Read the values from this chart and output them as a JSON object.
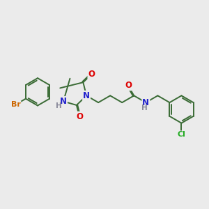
{
  "background_color": "#ebebeb",
  "bond_color": "#3a6b35",
  "bond_width": 1.4,
  "atom_colors": {
    "N": "#2020cc",
    "O": "#dd0000",
    "Br": "#cc6600",
    "Cl": "#22aa22",
    "H_label": "#888899",
    "C": "#3a6b35"
  },
  "font_size_atom": 8.5
}
